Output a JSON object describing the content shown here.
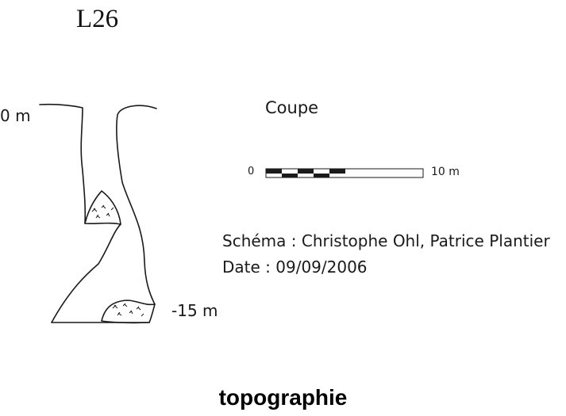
{
  "diagram": {
    "title": "L26",
    "depth_top": "0 m",
    "depth_bottom": "-15 m",
    "section_label": "Coupe",
    "scale": {
      "start": "0",
      "end": "10 m"
    },
    "author": "Schéma : Christophe Ohl, Patrice Plantier",
    "date": "Date : 09/09/2006",
    "footer": "topographie"
  },
  "colors": {
    "ink": "#1a1a1a",
    "background": "#ffffff"
  }
}
